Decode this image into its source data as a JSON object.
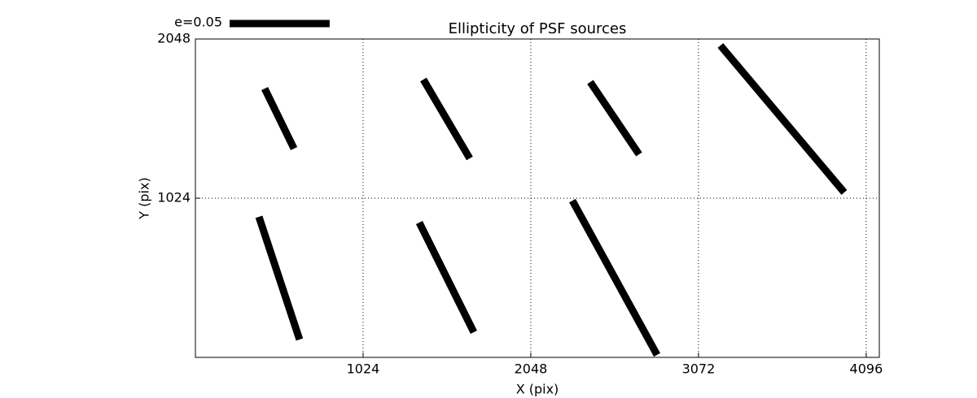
{
  "chart_data": {
    "type": "whisker",
    "title": "Ellipticity of PSF sources",
    "x_label": "X (pix)",
    "y_label": "Y (pix)",
    "xlim": [
      0,
      4176
    ],
    "ylim": [
      0,
      2048
    ],
    "xticks": [
      1024,
      2048,
      3072,
      4096
    ],
    "yticks": [
      1024,
      2048
    ],
    "grid": true,
    "color": "#000000",
    "key": {
      "label": "e=0.05",
      "length": 611
    },
    "segments": {
      "x1": [
        423,
        1392,
        2411,
        3206,
        388,
        1367,
        2302
      ],
      "y1": [
        1729,
        1787,
        1771,
        2006,
        904,
        867,
        1008
      ],
      "x2": [
        602,
        1675,
        2709,
        3962,
        636,
        1700,
        2819
      ],
      "y2": [
        1343,
        1280,
        1306,
        1061,
        115,
        162,
        16
      ]
    }
  }
}
